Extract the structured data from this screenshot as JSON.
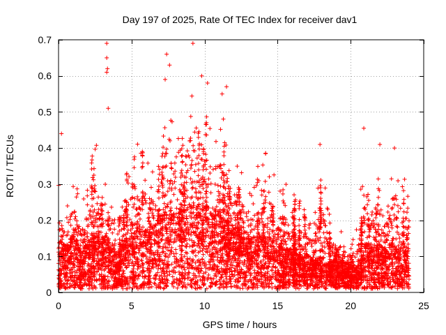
{
  "chart_data": {
    "type": "scatter",
    "title": "Day 197 of 2025, Rate Of TEC Index for receiver dav1",
    "xlabel": "GPS time / hours",
    "ylabel": "ROTI / TECUs",
    "xlim": [
      0,
      25
    ],
    "ylim": [
      0,
      0.7
    ],
    "xticks": [
      0,
      5,
      10,
      15,
      20,
      25
    ],
    "yticks": [
      0,
      0.1,
      0.2,
      0.3,
      0.4,
      0.5,
      0.6,
      0.7
    ],
    "xtick_labels": [
      "0",
      "5",
      "10",
      "15",
      "20",
      "25"
    ],
    "ytick_labels": [
      "0",
      "0.1",
      "0.2",
      "0.3",
      "0.4",
      "0.5",
      "0.6",
      "0.7"
    ],
    "grid": true,
    "legend": "none",
    "marker": "+",
    "color": "#ff0000",
    "envelope": {
      "note_hours": [
        0,
        0.5,
        1,
        1.5,
        2,
        2.5,
        3,
        3.5,
        4,
        4.5,
        5,
        5.5,
        6,
        6.5,
        7,
        7.5,
        8,
        8.5,
        9,
        9.5,
        10,
        10.5,
        11,
        11.5,
        12,
        12.5,
        13,
        13.5,
        14,
        14.5,
        15,
        15.5,
        16,
        16.5,
        17,
        17.5,
        18,
        18.5,
        19,
        19.5,
        20,
        20.5,
        21,
        21.5,
        22,
        22.5,
        23,
        23.5,
        24
      ],
      "upper_roti": [
        0.3,
        0.22,
        0.34,
        0.25,
        0.3,
        0.45,
        0.28,
        0.33,
        0.22,
        0.3,
        0.4,
        0.43,
        0.38,
        0.35,
        0.42,
        0.66,
        0.5,
        0.48,
        0.62,
        0.53,
        0.58,
        0.48,
        0.52,
        0.45,
        0.38,
        0.35,
        0.3,
        0.32,
        0.44,
        0.36,
        0.3,
        0.31,
        0.28,
        0.27,
        0.24,
        0.2,
        0.41,
        0.22,
        0.18,
        0.17,
        0.15,
        0.2,
        0.45,
        0.3,
        0.34,
        0.28,
        0.4,
        0.34,
        0.3
      ],
      "typical_roti": [
        0.09,
        0.07,
        0.1,
        0.07,
        0.08,
        0.1,
        0.08,
        0.09,
        0.06,
        0.08,
        0.11,
        0.12,
        0.12,
        0.11,
        0.13,
        0.15,
        0.14,
        0.14,
        0.15,
        0.14,
        0.15,
        0.13,
        0.14,
        0.12,
        0.11,
        0.1,
        0.09,
        0.09,
        0.1,
        0.09,
        0.08,
        0.07,
        0.07,
        0.06,
        0.06,
        0.05,
        0.06,
        0.05,
        0.05,
        0.05,
        0.04,
        0.04,
        0.08,
        0.07,
        0.08,
        0.07,
        0.09,
        0.08,
        0.07
      ]
    },
    "notable_points": [
      {
        "x": 0.2,
        "y": 0.44
      },
      {
        "x": 3.3,
        "y": 0.69
      },
      {
        "x": 3.3,
        "y": 0.65
      },
      {
        "x": 3.35,
        "y": 0.62
      },
      {
        "x": 3.3,
        "y": 0.61
      },
      {
        "x": 3.4,
        "y": 0.51
      },
      {
        "x": 7.4,
        "y": 0.66
      },
      {
        "x": 7.6,
        "y": 0.63
      },
      {
        "x": 7.3,
        "y": 0.59
      },
      {
        "x": 9.2,
        "y": 0.69
      },
      {
        "x": 9.8,
        "y": 0.6
      },
      {
        "x": 10.2,
        "y": 0.58
      },
      {
        "x": 11.5,
        "y": 0.57
      },
      {
        "x": 11.2,
        "y": 0.55
      },
      {
        "x": 17.9,
        "y": 0.41
      },
      {
        "x": 20.9,
        "y": 0.455
      },
      {
        "x": 22.0,
        "y": 0.41
      },
      {
        "x": 23.0,
        "y": 0.4
      }
    ]
  }
}
